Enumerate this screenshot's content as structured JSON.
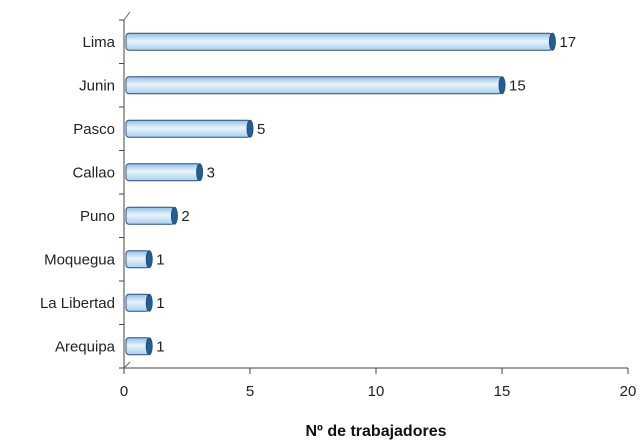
{
  "chart_data": {
    "type": "bar",
    "orientation": "horizontal",
    "style": "3d-cylinder",
    "categories": [
      "Lima",
      "Junin",
      "Pasco",
      "Callao",
      "Puno",
      "Moquegua",
      "La Libertad",
      "Arequipa"
    ],
    "values": [
      17,
      15,
      5,
      3,
      2,
      1,
      1,
      1
    ],
    "data_labels": [
      "17",
      "15",
      "5",
      "3",
      "2",
      "1",
      "1",
      "1"
    ],
    "xlabel": "Nº de trabajadores",
    "ylabel": "",
    "xlim": [
      0,
      20
    ],
    "xticks": [
      0,
      5,
      10,
      15,
      20
    ],
    "xtick_labels": [
      "0",
      "5",
      "10",
      "15",
      "20"
    ],
    "grid": false,
    "legend": false,
    "colors": {
      "bar_fill_light": "#eaf4fb",
      "bar_fill_dark": "#8fc0e6",
      "bar_stroke": "#2a4f7a",
      "bar_cap": "#1f5f95"
    }
  }
}
